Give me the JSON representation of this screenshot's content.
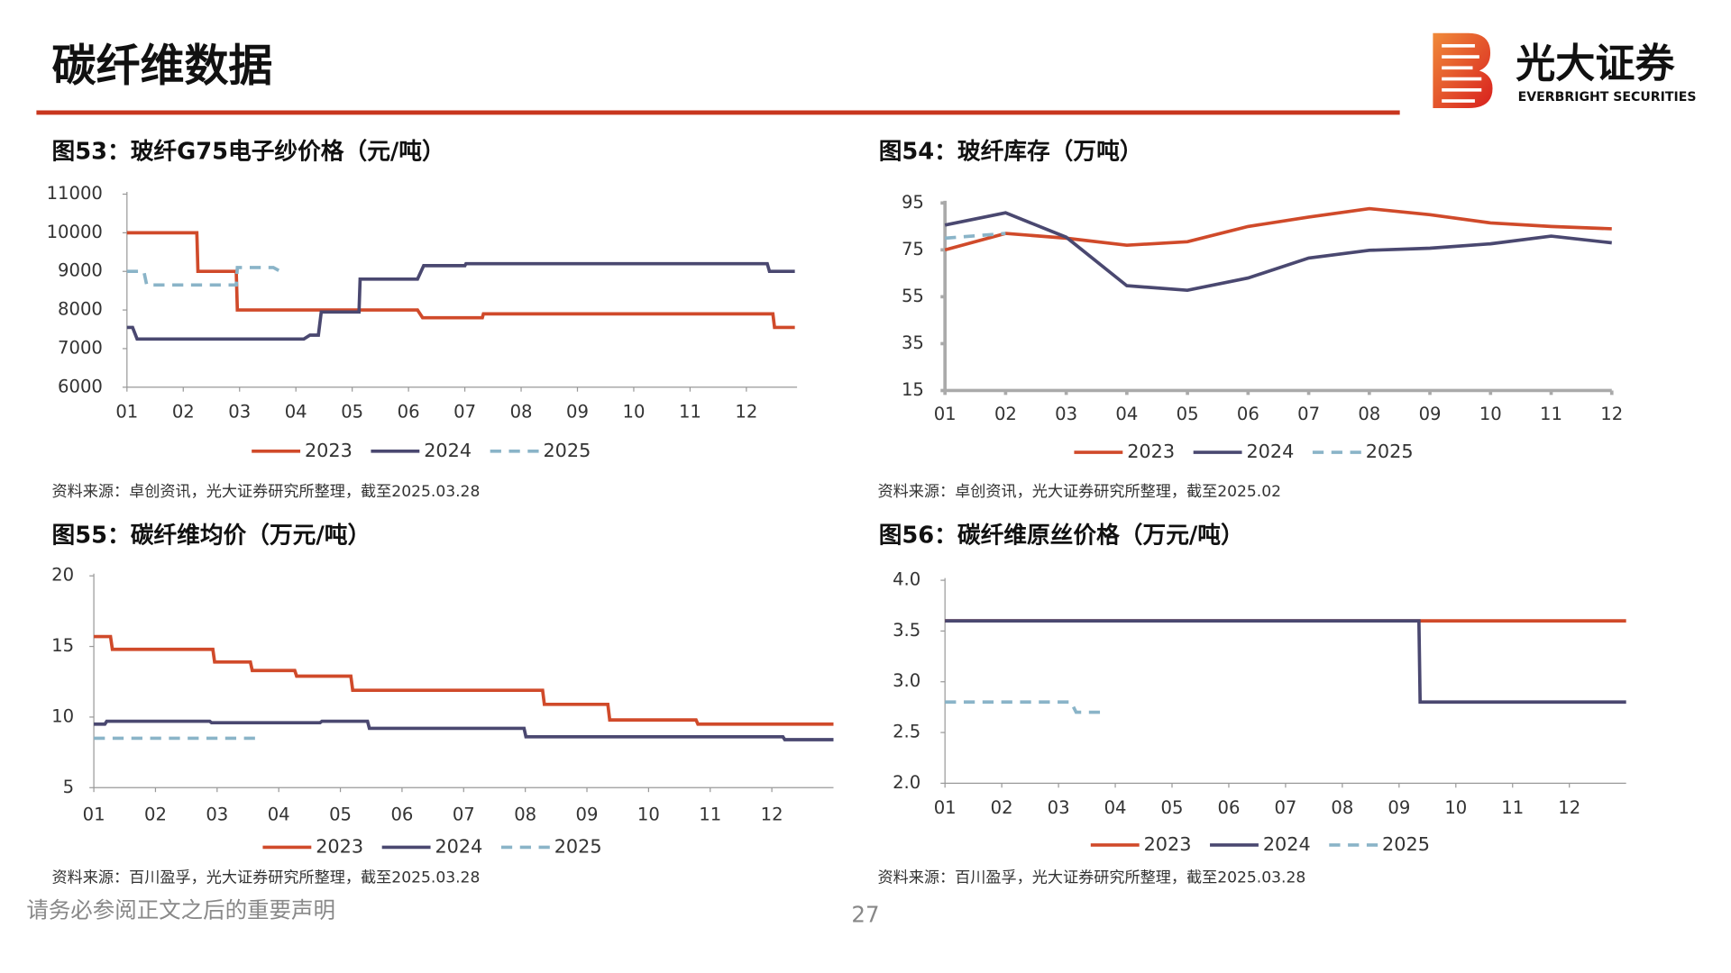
{
  "page": {
    "title": "碳纤维数据",
    "logo_cn": "光大证券",
    "logo_en": "EVERBRIGHT SECURITIES",
    "disclaimer": "请务必参阅正文之后的重要声明",
    "page_number": "27"
  },
  "chart_data": [
    {
      "type": "line",
      "title": "图53：玻纤G75电子纱价格（元/吨）",
      "source": "资料来源：卓创资讯，光大证券研究所整理，截至2025.03.28",
      "xlim": [
        1,
        12.9
      ],
      "xticks": [
        {
          "value": 1,
          "label": "01"
        },
        {
          "value": 2,
          "label": "02"
        },
        {
          "value": 3,
          "label": "03"
        },
        {
          "value": 4,
          "label": "04"
        },
        {
          "value": 5,
          "label": "05"
        },
        {
          "value": 6,
          "label": "06"
        },
        {
          "value": 7,
          "label": "07"
        },
        {
          "value": 8,
          "label": "08"
        },
        {
          "value": 9,
          "label": "09"
        },
        {
          "value": 10,
          "label": "10"
        },
        {
          "value": 11,
          "label": "11"
        },
        {
          "value": 12,
          "label": "12"
        }
      ],
      "ylim": [
        6000,
        11000
      ],
      "yticks": [
        6000,
        7000,
        8000,
        9000,
        10000,
        11000
      ],
      "series": [
        {
          "name": "2023",
          "color": "#d04a2a",
          "style": "solid",
          "x": [
            1,
            2.24,
            2.26,
            2.94,
            2.96,
            6.16,
            6.25,
            7.31,
            7.33,
            12.47,
            12.5,
            12.86
          ],
          "values": [
            10000,
            10000,
            9000,
            9000,
            8000,
            8000,
            7800,
            7800,
            7900,
            7900,
            7550,
            7550
          ]
        },
        {
          "name": "2024",
          "color": "#4a4870",
          "style": "solid",
          "x": [
            1,
            1.1,
            1.18,
            4.14,
            4.25,
            4.4,
            4.45,
            5.12,
            5.14,
            6.16,
            6.27,
            7.0,
            7.02,
            12.37,
            12.41,
            12.86
          ],
          "values": [
            7550,
            7550,
            7250,
            7250,
            7350,
            7350,
            7950,
            7950,
            8800,
            8800,
            9150,
            9150,
            9200,
            9200,
            9000,
            9000
          ]
        },
        {
          "name": "2025",
          "color": "#8ab4c8",
          "style": "dashed",
          "x": [
            1,
            1.3,
            1.35,
            2.94,
            2.96,
            3.6,
            3.75,
            3.8
          ],
          "values": [
            9000,
            9000,
            8650,
            8650,
            9100,
            9100,
            8980,
            8980
          ]
        }
      ]
    },
    {
      "type": "line",
      "title": "图54：玻纤库存（万吨）",
      "source": "资料来源：卓创资讯，光大证券研究所整理，截至2025.02",
      "xlim": [
        1,
        12
      ],
      "xticks": [
        {
          "value": 1,
          "label": "01"
        },
        {
          "value": 2,
          "label": "02"
        },
        {
          "value": 3,
          "label": "03"
        },
        {
          "value": 4,
          "label": "04"
        },
        {
          "value": 5,
          "label": "05"
        },
        {
          "value": 6,
          "label": "06"
        },
        {
          "value": 7,
          "label": "07"
        },
        {
          "value": 8,
          "label": "08"
        },
        {
          "value": 9,
          "label": "09"
        },
        {
          "value": 10,
          "label": "10"
        },
        {
          "value": 11,
          "label": "11"
        },
        {
          "value": 12,
          "label": "12"
        }
      ],
      "ylim": [
        15,
        95
      ],
      "yticks": [
        15,
        35,
        55,
        75,
        95
      ],
      "series": [
        {
          "name": "2023",
          "color": "#d04a2a",
          "style": "solid",
          "x": [
            1,
            2,
            3,
            4,
            5,
            6,
            7,
            8,
            9,
            10,
            11,
            12
          ],
          "values": [
            75,
            82,
            80,
            77,
            78.5,
            85,
            89,
            92.6,
            90,
            86.5,
            85,
            84
          ]
        },
        {
          "name": "2024",
          "color": "#4a4870",
          "style": "solid",
          "x": [
            1,
            2,
            3,
            4,
            5,
            6,
            7,
            8,
            9,
            10,
            11,
            12
          ],
          "values": [
            85.6,
            90.8,
            80.4,
            59.7,
            57.8,
            63,
            71.5,
            74.8,
            75.7,
            77.6,
            80.9,
            78
          ]
        },
        {
          "name": "2025",
          "color": "#8ab4c8",
          "style": "dashed",
          "x": [
            1,
            2
          ],
          "values": [
            80,
            82
          ]
        }
      ]
    },
    {
      "type": "line",
      "title": "图55：碳纤维均价（万元/吨）",
      "source": "资料来源：百川盈孚，光大证券研究所整理，截至2025.03.28",
      "xlim": [
        1,
        13
      ],
      "xticks": [
        {
          "value": 1,
          "label": "01"
        },
        {
          "value": 2,
          "label": "02"
        },
        {
          "value": 3,
          "label": "03"
        },
        {
          "value": 4,
          "label": "04"
        },
        {
          "value": 5,
          "label": "05"
        },
        {
          "value": 6,
          "label": "06"
        },
        {
          "value": 7,
          "label": "07"
        },
        {
          "value": 8,
          "label": "08"
        },
        {
          "value": 9,
          "label": "09"
        },
        {
          "value": 10,
          "label": "10"
        },
        {
          "value": 11,
          "label": "11"
        },
        {
          "value": 12,
          "label": "12"
        }
      ],
      "ylim": [
        5,
        20
      ],
      "yticks": [
        5,
        10,
        15,
        20
      ],
      "series": [
        {
          "name": "2023",
          "color": "#d04a2a",
          "style": "solid",
          "x": [
            1,
            1.27,
            1.3,
            2.93,
            2.96,
            3.54,
            3.57,
            4.26,
            4.29,
            5.17,
            5.2,
            8.28,
            8.31,
            9.34,
            9.37,
            10.77,
            10.8,
            13
          ],
          "values": [
            15.7,
            15.7,
            14.8,
            14.8,
            13.9,
            13.9,
            13.3,
            13.3,
            12.9,
            12.9,
            11.9,
            11.9,
            10.9,
            10.9,
            9.8,
            9.8,
            9.5,
            9.5
          ]
        },
        {
          "name": "2024",
          "color": "#4a4870",
          "style": "solid",
          "x": [
            1,
            1.18,
            1.21,
            2.88,
            2.91,
            4.67,
            4.7,
            5.44,
            5.47,
            7.98,
            8.01,
            12.18,
            12.21,
            13
          ],
          "values": [
            9.5,
            9.5,
            9.7,
            9.7,
            9.6,
            9.6,
            9.7,
            9.7,
            9.2,
            9.2,
            8.6,
            8.6,
            8.4,
            8.4
          ]
        },
        {
          "name": "2025",
          "color": "#8ab4c8",
          "style": "dashed",
          "x": [
            1,
            3.63
          ],
          "values": [
            8.5,
            8.5
          ]
        }
      ]
    },
    {
      "type": "line",
      "title": "图56：碳纤维原丝价格（万元/吨）",
      "source": "资料来源：百川盈孚，光大证券研究所整理，截至2025.03.28",
      "xlim": [
        1,
        13
      ],
      "xticks": [
        {
          "value": 1,
          "label": "01"
        },
        {
          "value": 2,
          "label": "02"
        },
        {
          "value": 3,
          "label": "03"
        },
        {
          "value": 4,
          "label": "04"
        },
        {
          "value": 5,
          "label": "05"
        },
        {
          "value": 6,
          "label": "06"
        },
        {
          "value": 7,
          "label": "07"
        },
        {
          "value": 8,
          "label": "08"
        },
        {
          "value": 9,
          "label": "09"
        },
        {
          "value": 10,
          "label": "10"
        },
        {
          "value": 11,
          "label": "11"
        },
        {
          "value": 12,
          "label": "12"
        }
      ],
      "ylim": [
        2,
        4
      ],
      "yticks": [
        {
          "value": 2,
          "label": "2.0"
        },
        {
          "value": 2.5,
          "label": "2.5"
        },
        {
          "value": 3,
          "label": "3.0"
        },
        {
          "value": 3.5,
          "label": "3.5"
        },
        {
          "value": 4,
          "label": "4.0"
        }
      ],
      "series": [
        {
          "name": "2023",
          "color": "#d04a2a",
          "style": "solid",
          "x": [
            1,
            13
          ],
          "values": [
            3.6,
            3.6
          ]
        },
        {
          "name": "2024",
          "color": "#4a4870",
          "style": "solid",
          "x": [
            1,
            9.35,
            9.37,
            13
          ],
          "values": [
            3.6,
            3.6,
            2.8,
            2.8
          ]
        },
        {
          "name": "2025",
          "color": "#8ab4c8",
          "style": "dashed",
          "x": [
            1,
            3.22,
            3.31,
            3.86
          ],
          "values": [
            2.8,
            2.8,
            2.7,
            2.7
          ]
        }
      ]
    }
  ]
}
